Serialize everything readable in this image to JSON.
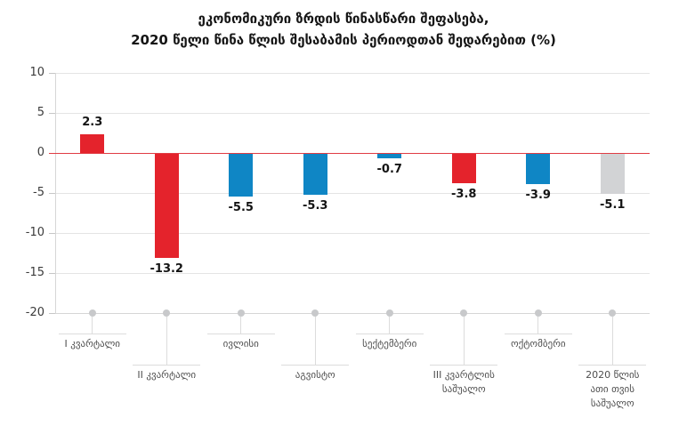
{
  "title": {
    "line1": "ეკონომიკური ზრდის წინასწარი შეფასება,",
    "line2": "2020 წელი წინა წლის შესაბამის პერიოდთან შედარებით (%)"
  },
  "chart_data": {
    "type": "bar",
    "title": "ეკონომიკური ზრდის წინასწარი შეფასება,",
    "subtitle": "2020 წელი წინა წლის შესაბამის პერიოდთან შედარებით (%)",
    "categories": [
      "I კვარტალი",
      "II კვარტალი",
      "ივლისი",
      "აგვისტო",
      "სექტემბერი",
      "III კვარტლის საშუალო",
      "ოქტომბერი",
      "2020 წლის ათი თვის საშუალო"
    ],
    "category_label_lines": [
      [
        "I კვარტალი"
      ],
      [
        "II კვარტალი"
      ],
      [
        "ივლისი"
      ],
      [
        "აგვისტო"
      ],
      [
        "სექტემბერი"
      ],
      [
        "III კვარტლის",
        "საშუალო"
      ],
      [
        "ოქტომბერი"
      ],
      [
        "2020 წლის",
        "ათი თვის",
        "საშუალო"
      ]
    ],
    "category_label_row": [
      1,
      2,
      1,
      2,
      1,
      2,
      1,
      2
    ],
    "values": [
      2.3,
      -13.2,
      -5.5,
      -5.3,
      -0.7,
      -3.8,
      -3.9,
      -5.1
    ],
    "value_labels": [
      "2.3",
      "-13.2",
      "-5.5",
      "-5.3",
      "-0.7",
      "-3.8",
      "-3.9",
      "-5.1"
    ],
    "bar_color_keys": [
      "red",
      "red",
      "blue",
      "blue",
      "blue",
      "red",
      "blue",
      "gray"
    ],
    "palette": {
      "red": "#e4232c",
      "blue": "#0f86c5",
      "gray": "#d2d3d5"
    },
    "ylim": [
      -20,
      10
    ],
    "yticks": [
      10,
      5,
      0,
      -5,
      -10,
      -15,
      -20
    ],
    "ytick_labels": [
      "10",
      "5",
      "0",
      "-5",
      "-10",
      "-15",
      "-20"
    ],
    "grid": true,
    "zero_line": true,
    "zero_line_color": "#e03c44",
    "legend": "none",
    "xlabel": "",
    "ylabel": ""
  }
}
